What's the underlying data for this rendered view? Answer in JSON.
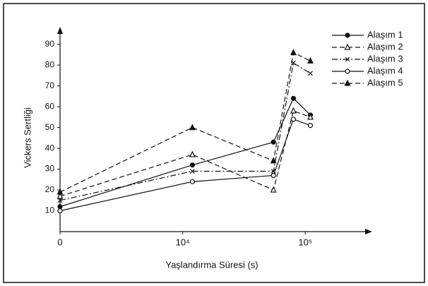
{
  "chart_data": {
    "type": "line",
    "xlabel": "Yaşlandırma Süresi (s)",
    "ylabel": "Vickers Sertliği",
    "x": [
      1000,
      12000,
      55000,
      80000,
      110000
    ],
    "xlog": true,
    "xlim": [
      1000,
      320000
    ],
    "xticks": [
      {
        "value": 1000,
        "label": "0"
      },
      {
        "value": 10000,
        "label": "10⁴"
      },
      {
        "value": 100000,
        "label": "10⁵"
      }
    ],
    "ylim": [
      0,
      96
    ],
    "yticks": [
      10,
      20,
      30,
      40,
      50,
      60,
      70,
      80,
      90
    ],
    "legend": "upper right",
    "series": [
      {
        "name": "Alaşım 1",
        "color": "#111111",
        "dash": "solid",
        "marker": "circle-filled",
        "values": [
          12,
          32,
          43,
          64,
          56
        ]
      },
      {
        "name": "Alaşım 2",
        "color": "#111111",
        "dash": "dashed",
        "marker": "triangle-open",
        "values": [
          17,
          37,
          20,
          58,
          55
        ]
      },
      {
        "name": "Alaşım 3",
        "color": "#111111",
        "dash": "dashdot",
        "marker": "x",
        "values": [
          15,
          29,
          29,
          81,
          76
        ]
      },
      {
        "name": "Alaşım 4",
        "color": "#111111",
        "dash": "solid",
        "marker": "circle-open",
        "values": [
          10,
          24,
          27,
          54,
          51
        ]
      },
      {
        "name": "Alaşım 5",
        "color": "#111111",
        "dash": "dashed",
        "marker": "triangle-filled",
        "values": [
          19,
          50,
          34,
          86,
          82
        ]
      }
    ]
  }
}
